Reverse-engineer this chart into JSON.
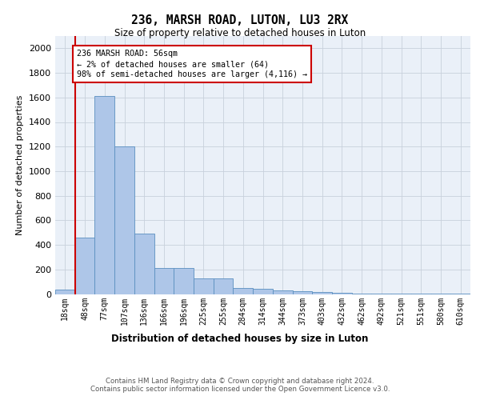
{
  "title1": "236, MARSH ROAD, LUTON, LU3 2RX",
  "title2": "Size of property relative to detached houses in Luton",
  "xlabel": "Distribution of detached houses by size in Luton",
  "ylabel": "Number of detached properties",
  "categories": [
    "18sqm",
    "48sqm",
    "77sqm",
    "107sqm",
    "136sqm",
    "166sqm",
    "196sqm",
    "225sqm",
    "255sqm",
    "284sqm",
    "314sqm",
    "344sqm",
    "373sqm",
    "403sqm",
    "432sqm",
    "462sqm",
    "492sqm",
    "521sqm",
    "551sqm",
    "580sqm",
    "610sqm"
  ],
  "values": [
    35,
    460,
    1610,
    1200,
    490,
    210,
    210,
    130,
    130,
    50,
    45,
    30,
    20,
    15,
    10,
    5,
    5,
    3,
    2,
    1,
    1
  ],
  "bar_color": "#aec6e8",
  "bar_edge_color": "#5a8fc0",
  "ylim_max": 2100,
  "yticks": [
    0,
    200,
    400,
    600,
    800,
    1000,
    1200,
    1400,
    1600,
    1800,
    2000
  ],
  "vline_x": 0.5,
  "vline_color": "#cc0000",
  "annotation_line1": "236 MARSH ROAD: 56sqm",
  "annotation_line2": "← 2% of detached houses are smaller (64)",
  "annotation_line3": "98% of semi-detached houses are larger (4,116) →",
  "annotation_box_color": "#ffffff",
  "annotation_box_edge": "#cc0000",
  "footer1": "Contains HM Land Registry data © Crown copyright and database right 2024.",
  "footer2": "Contains public sector information licensed under the Open Government Licence v3.0.",
  "plot_bg_color": "#eaf0f8",
  "grid_color": "#c8d0dc"
}
